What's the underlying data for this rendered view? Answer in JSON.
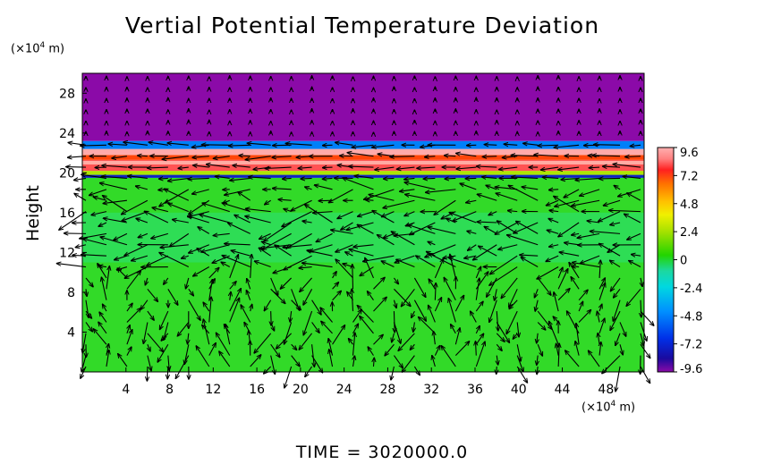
{
  "chart_data": {
    "type": "heatmap",
    "title": "Vertial Potential Temperature Deviation",
    "ylabel": "Height",
    "xunit": "(×10⁴ m)",
    "yunit": "(×10⁴ m)",
    "footer": "TIME = 3020000.0",
    "xlim": [
      0,
      51.5
    ],
    "ylim": [
      0,
      30
    ],
    "xticks": [
      "4",
      "8",
      "12",
      "16",
      "20",
      "24",
      "28",
      "32",
      "36",
      "40",
      "44",
      "48"
    ],
    "yticks": [
      "4",
      "8",
      "12",
      "16",
      "20",
      "24",
      "28"
    ],
    "colorbar": {
      "range": [
        -9.6,
        9.6
      ],
      "ticks": [
        "9.6",
        "7.2",
        "4.8",
        "2.4",
        "0",
        "-2.4",
        "-4.8",
        "-7.2",
        "-9.6"
      ]
    },
    "layers": [
      {
        "from": 0,
        "to": 19.5,
        "value": 0.5
      },
      {
        "from": 19.5,
        "to": 19.8,
        "value": -6
      },
      {
        "from": 19.8,
        "to": 20.2,
        "value": 3
      },
      {
        "from": 20.2,
        "to": 21.3,
        "value": 8.8
      },
      {
        "from": 21.3,
        "to": 21.8,
        "value": 7.5
      },
      {
        "from": 21.8,
        "to": 22.4,
        "value": 9.6
      },
      {
        "from": 22.4,
        "to": 23.2,
        "value": -3
      },
      {
        "from": 23.2,
        "to": 30,
        "value": -9.6
      }
    ],
    "vectors": "wind field overlay"
  }
}
